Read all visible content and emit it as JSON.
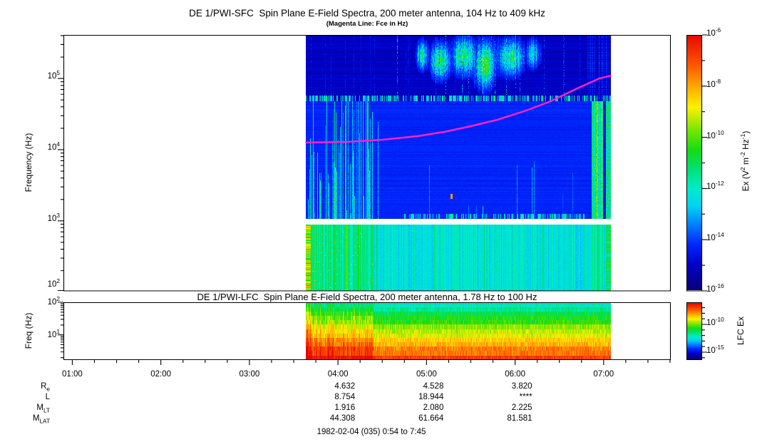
{
  "header": {
    "sfc_title": "DE 1/PWI-SFC  Spin Plane E-Field Spectra, 200 meter antenna, 104 Hz to 409 kHz",
    "sfc_subtitle": "(Magenta Line: Fce in Hz)",
    "lfc_title": "DE 1/PWI-LFC  Spin Plane E-Field Spectra, 200 meter antenna, 1.78 Hz to 100 Hz"
  },
  "footer": {
    "date_range": "1982-02-04 (035) 0:54 to 7:45"
  },
  "ephemeris": {
    "value_columns_hours": [
      4,
      5,
      6
    ],
    "rows": [
      {
        "label": "R_e",
        "values": [
          "4.632",
          "4.528",
          "3.820"
        ]
      },
      {
        "label": "L",
        "values": [
          "8.754",
          "18.944",
          "****"
        ]
      },
      {
        "label": "M_LT",
        "values": [
          "1.916",
          "2.080",
          "2.225"
        ]
      },
      {
        "label": "M_LAT",
        "values": [
          "44.308",
          "61.664",
          "81.581"
        ]
      }
    ]
  },
  "colormap_stops": [
    [
      0.0,
      [
        8,
        0,
        120
      ]
    ],
    [
      0.1,
      [
        0,
        0,
        200
      ]
    ],
    [
      0.18,
      [
        0,
        40,
        255
      ]
    ],
    [
      0.26,
      [
        0,
        130,
        255
      ]
    ],
    [
      0.33,
      [
        0,
        210,
        240
      ]
    ],
    [
      0.4,
      [
        0,
        235,
        200
      ]
    ],
    [
      0.48,
      [
        0,
        225,
        110
      ]
    ],
    [
      0.55,
      [
        20,
        220,
        20
      ]
    ],
    [
      0.63,
      [
        120,
        230,
        0
      ]
    ],
    [
      0.72,
      [
        255,
        240,
        0
      ]
    ],
    [
      0.8,
      [
        255,
        170,
        0
      ]
    ],
    [
      0.88,
      [
        255,
        90,
        0
      ]
    ],
    [
      1.0,
      [
        230,
        10,
        0
      ]
    ]
  ],
  "chart_data": [
    {
      "type": "heatmap",
      "id": "sfc",
      "title": "DE 1/PWI-SFC  Spin Plane E-Field Spectra, 200 meter antenna, 104 Hz to 409 kHz",
      "subtitle": "(Magenta Line: Fce in Hz)",
      "ylabel": "Frequency (Hz)",
      "y_scale": "log",
      "y_range_hz": [
        104,
        409000
      ],
      "y_ticks": [
        "10^5",
        "10^4",
        "10^3",
        "10^2"
      ],
      "x_unit": "UT (hours)",
      "x_range_hours": [
        0.9,
        7.75
      ],
      "x_ticks": [
        {
          "hour": 1,
          "label": "01:00"
        },
        {
          "hour": 2,
          "label": "02:00"
        },
        {
          "hour": 3,
          "label": "03:00"
        },
        {
          "hour": 4,
          "label": "04:00"
        },
        {
          "hour": 5,
          "label": "05:00"
        },
        {
          "hour": 6,
          "label": "06:00"
        },
        {
          "hour": 7,
          "label": "07:00"
        }
      ],
      "minor_tick_minutes": 15,
      "data_time_span_hours": [
        3.63,
        7.08
      ],
      "gap_band_logf": [
        2.95,
        3.03
      ],
      "colorbar": {
        "label": "Ex (V^2 m^-2 Hz^-1)",
        "tick_labels": [
          "10^-6",
          "10^-8",
          "10^-10",
          "10^-12",
          "10^-14",
          "10^-16"
        ],
        "range_exp": [
          -16,
          -6
        ]
      },
      "fce_line": {
        "label": "Fce in Hz",
        "color": "#ff22cc",
        "points_t_logf": [
          [
            3.64,
            4.1
          ],
          [
            4.1,
            4.11
          ],
          [
            4.5,
            4.14
          ],
          [
            4.9,
            4.19
          ],
          [
            5.2,
            4.25
          ],
          [
            5.5,
            4.33
          ],
          [
            5.8,
            4.42
          ],
          [
            6.1,
            4.54
          ],
          [
            6.4,
            4.68
          ],
          [
            6.7,
            4.86
          ],
          [
            6.95,
            5.0
          ],
          [
            7.08,
            5.04
          ]
        ]
      },
      "blobs": [
        {
          "t": 4.95,
          "f": 5.33,
          "tw": 0.06,
          "fw": 0.18,
          "i": 0.45
        },
        {
          "t": 5.15,
          "f": 5.25,
          "tw": 0.1,
          "fw": 0.22,
          "i": 0.6
        },
        {
          "t": 5.42,
          "f": 5.32,
          "tw": 0.12,
          "fw": 0.23,
          "i": 0.62
        },
        {
          "t": 5.65,
          "f": 5.2,
          "tw": 0.11,
          "fw": 0.28,
          "i": 0.62
        },
        {
          "t": 5.95,
          "f": 5.3,
          "tw": 0.13,
          "fw": 0.22,
          "i": 0.6
        },
        {
          "t": 6.2,
          "f": 5.35,
          "tw": 0.07,
          "fw": 0.18,
          "i": 0.45
        },
        {
          "t": 5.6,
          "f": 5.3,
          "tw": 0.55,
          "fw": 0.28,
          "i": 0.18
        }
      ],
      "hot_spot": {
        "t": 5.28,
        "logf": 3.35
      },
      "bright_column_hours": [
        6.86,
        7.08
      ],
      "content_note": "dark navy above 50 kHz with cyan-green AKR bursts 4.9-6.3 h at 100-400 kHz; blue 1-50 kHz band with dense cyan streaks before 4.4 h; white instrument gap near 1 kHz; turquoise band 104-860 Hz"
    },
    {
      "type": "heatmap",
      "id": "lfc",
      "title": "DE 1/PWI-LFC  Spin Plane E-Field Spectra, 200 meter antenna, 1.78 Hz to 100 Hz",
      "ylabel": "Freq (Hz)",
      "y_scale": "log",
      "y_range_hz": [
        1.78,
        100
      ],
      "y_ticks": [
        "10^2",
        "10^1"
      ],
      "x_range_hours": [
        0.9,
        7.75
      ],
      "data_time_span_hours": [
        3.63,
        7.08
      ],
      "colorbar": {
        "label": "LFC Ex",
        "tick_labels": [
          "10^-10",
          "10^-15"
        ],
        "range_exp": [
          -16,
          -7
        ]
      },
      "content_note": "layered spectrum: cyan-green at 100 Hz grading through green, yellow, orange to red at 1.78 Hz; hotter/streakier before 4.4 h"
    }
  ]
}
